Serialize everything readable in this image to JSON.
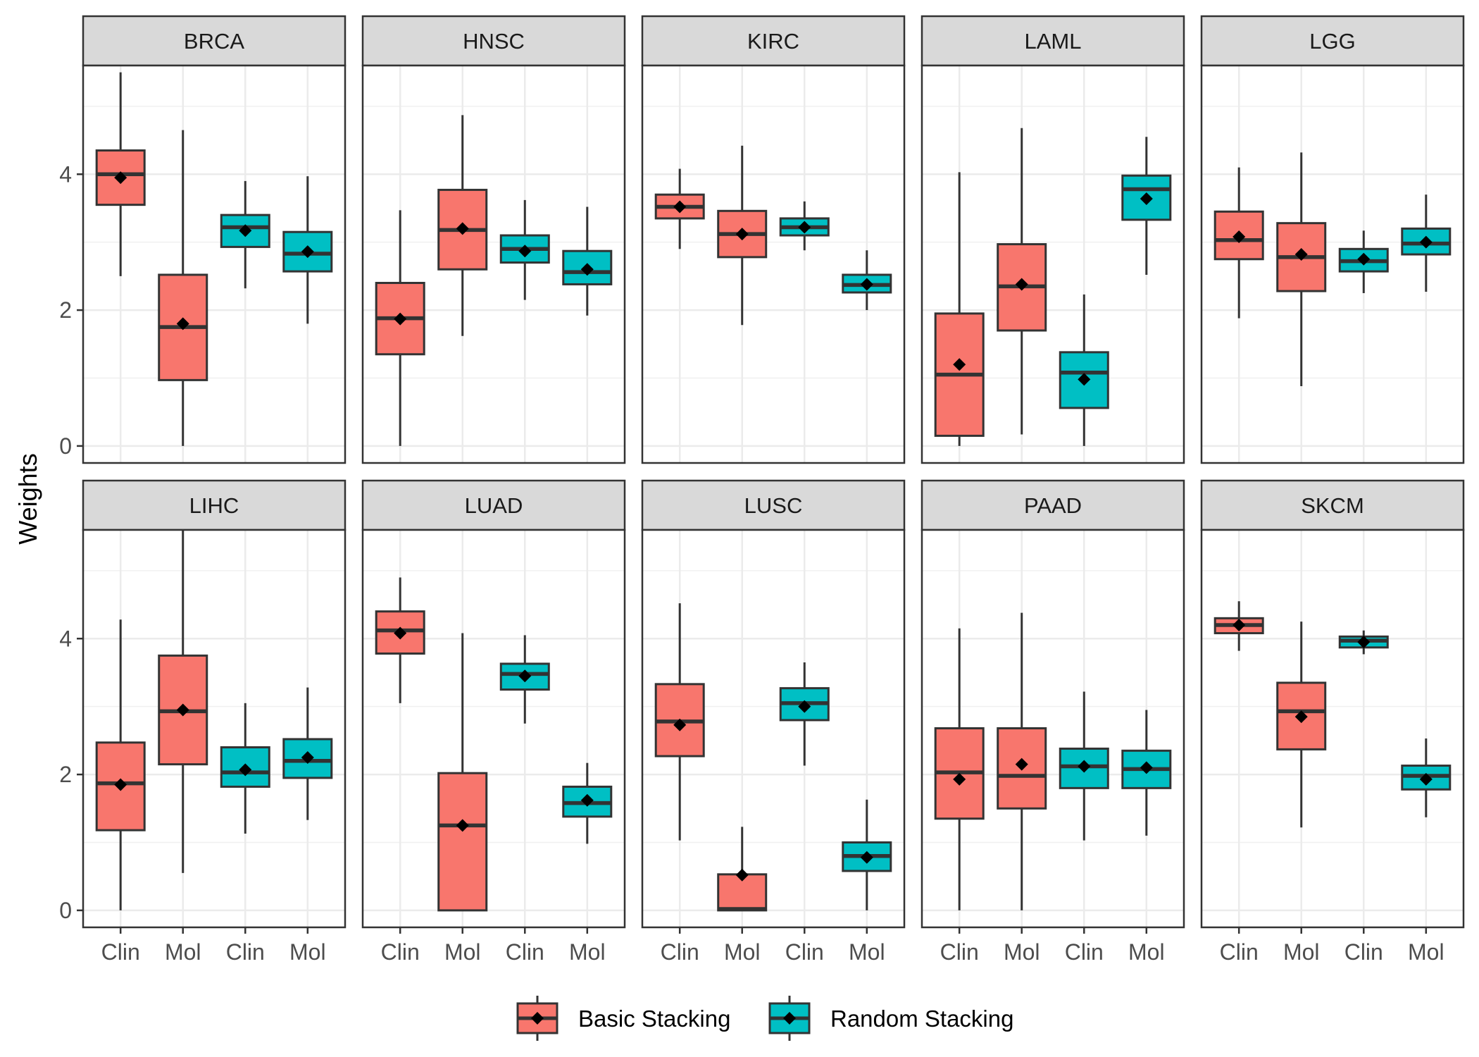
{
  "chart_data": {
    "type": "box",
    "ylabel": "Weights",
    "xlabel": "",
    "ylim": [
      -0.25,
      5.6
    ],
    "yticks": [
      0,
      2,
      4
    ],
    "ytick_labels": [
      "0",
      "2",
      "4"
    ],
    "categories": [
      "Clin",
      "Mol",
      "Clin",
      "Mol"
    ],
    "grid": true,
    "legend_position": "bottom",
    "legend": [
      {
        "name": "Basic Stacking",
        "color": "#F8766D"
      },
      {
        "name": "Random Stacking",
        "color": "#00BFC4"
      }
    ],
    "panels": [
      {
        "name": "BRCA",
        "boxes": [
          {
            "category": "Clin",
            "series": "Basic Stacking",
            "min": 2.5,
            "q1": 3.55,
            "median": 4.0,
            "q3": 4.35,
            "max": 5.5,
            "mean": 3.95
          },
          {
            "category": "Mol",
            "series": "Basic Stacking",
            "min": 0.0,
            "q1": 0.97,
            "median": 1.75,
            "q3": 2.52,
            "max": 4.65,
            "mean": 1.8
          },
          {
            "category": "Clin",
            "series": "Random Stacking",
            "min": 2.32,
            "q1": 2.93,
            "median": 3.22,
            "q3": 3.4,
            "max": 3.9,
            "mean": 3.17
          },
          {
            "category": "Mol",
            "series": "Random Stacking",
            "min": 1.8,
            "q1": 2.57,
            "median": 2.83,
            "q3": 3.15,
            "max": 3.97,
            "mean": 2.86
          }
        ]
      },
      {
        "name": "HNSC",
        "boxes": [
          {
            "category": "Clin",
            "series": "Basic Stacking",
            "min": 0.0,
            "q1": 1.35,
            "median": 1.88,
            "q3": 2.4,
            "max": 3.47,
            "mean": 1.87
          },
          {
            "category": "Mol",
            "series": "Basic Stacking",
            "min": 1.62,
            "q1": 2.6,
            "median": 3.18,
            "q3": 3.77,
            "max": 4.87,
            "mean": 3.2
          },
          {
            "category": "Clin",
            "series": "Random Stacking",
            "min": 2.15,
            "q1": 2.7,
            "median": 2.9,
            "q3": 3.1,
            "max": 3.62,
            "mean": 2.87
          },
          {
            "category": "Mol",
            "series": "Random Stacking",
            "min": 1.92,
            "q1": 2.38,
            "median": 2.56,
            "q3": 2.87,
            "max": 3.52,
            "mean": 2.6
          }
        ]
      },
      {
        "name": "KIRC",
        "boxes": [
          {
            "category": "Clin",
            "series": "Basic Stacking",
            "min": 2.9,
            "q1": 3.35,
            "median": 3.52,
            "q3": 3.7,
            "max": 4.08,
            "mean": 3.52
          },
          {
            "category": "Mol",
            "series": "Basic Stacking",
            "min": 1.78,
            "q1": 2.78,
            "median": 3.12,
            "q3": 3.46,
            "max": 4.42,
            "mean": 3.12
          },
          {
            "category": "Clin",
            "series": "Random Stacking",
            "min": 2.88,
            "q1": 3.1,
            "median": 3.22,
            "q3": 3.35,
            "max": 3.6,
            "mean": 3.22
          },
          {
            "category": "Mol",
            "series": "Random Stacking",
            "min": 2.0,
            "q1": 2.26,
            "median": 2.37,
            "q3": 2.52,
            "max": 2.88,
            "mean": 2.38
          }
        ]
      },
      {
        "name": "LAML",
        "boxes": [
          {
            "category": "Clin",
            "series": "Basic Stacking",
            "min": 0.0,
            "q1": 0.15,
            "median": 1.05,
            "q3": 1.95,
            "max": 4.03,
            "mean": 1.2
          },
          {
            "category": "Mol",
            "series": "Basic Stacking",
            "min": 0.17,
            "q1": 1.7,
            "median": 2.35,
            "q3": 2.97,
            "max": 4.68,
            "mean": 2.38
          },
          {
            "category": "Clin",
            "series": "Random Stacking",
            "min": 0.0,
            "q1": 0.56,
            "median": 1.08,
            "q3": 1.38,
            "max": 2.23,
            "mean": 0.98
          },
          {
            "category": "Mol",
            "series": "Random Stacking",
            "min": 2.52,
            "q1": 3.33,
            "median": 3.78,
            "q3": 3.98,
            "max": 4.55,
            "mean": 3.64
          }
        ]
      },
      {
        "name": "LGG",
        "boxes": [
          {
            "category": "Clin",
            "series": "Basic Stacking",
            "min": 1.88,
            "q1": 2.75,
            "median": 3.03,
            "q3": 3.45,
            "max": 4.1,
            "mean": 3.08
          },
          {
            "category": "Mol",
            "series": "Basic Stacking",
            "min": 0.88,
            "q1": 2.28,
            "median": 2.78,
            "q3": 3.28,
            "max": 4.32,
            "mean": 2.82
          },
          {
            "category": "Clin",
            "series": "Random Stacking",
            "min": 2.25,
            "q1": 2.57,
            "median": 2.72,
            "q3": 2.9,
            "max": 3.17,
            "mean": 2.75
          },
          {
            "category": "Mol",
            "series": "Random Stacking",
            "min": 2.27,
            "q1": 2.82,
            "median": 2.98,
            "q3": 3.2,
            "max": 3.7,
            "mean": 3.0
          }
        ]
      },
      {
        "name": "LIHC",
        "boxes": [
          {
            "category": "Clin",
            "series": "Basic Stacking",
            "min": 0.0,
            "q1": 1.18,
            "median": 1.87,
            "q3": 2.47,
            "max": 4.28,
            "mean": 1.85
          },
          {
            "category": "Mol",
            "series": "Basic Stacking",
            "min": 0.55,
            "q1": 2.15,
            "median": 2.93,
            "q3": 3.75,
            "max": 5.6,
            "mean": 2.95
          },
          {
            "category": "Clin",
            "series": "Random Stacking",
            "min": 1.13,
            "q1": 1.82,
            "median": 2.03,
            "q3": 2.4,
            "max": 3.05,
            "mean": 2.07
          },
          {
            "category": "Mol",
            "series": "Random Stacking",
            "min": 1.33,
            "q1": 1.95,
            "median": 2.2,
            "q3": 2.52,
            "max": 3.28,
            "mean": 2.25
          }
        ]
      },
      {
        "name": "LUAD",
        "boxes": [
          {
            "category": "Clin",
            "series": "Basic Stacking",
            "min": 3.05,
            "q1": 3.78,
            "median": 4.12,
            "q3": 4.4,
            "max": 4.9,
            "mean": 4.08
          },
          {
            "category": "Mol",
            "series": "Basic Stacking",
            "min": 0.0,
            "q1": 0.0,
            "median": 1.25,
            "q3": 2.02,
            "max": 4.08,
            "mean": 1.25
          },
          {
            "category": "Clin",
            "series": "Random Stacking",
            "min": 2.75,
            "q1": 3.25,
            "median": 3.48,
            "q3": 3.63,
            "max": 4.05,
            "mean": 3.45
          },
          {
            "category": "Mol",
            "series": "Random Stacking",
            "min": 0.98,
            "q1": 1.38,
            "median": 1.58,
            "q3": 1.82,
            "max": 2.17,
            "mean": 1.62
          }
        ]
      },
      {
        "name": "LUSC",
        "boxes": [
          {
            "category": "Clin",
            "series": "Basic Stacking",
            "min": 1.03,
            "q1": 2.27,
            "median": 2.78,
            "q3": 3.33,
            "max": 4.52,
            "mean": 2.73
          },
          {
            "category": "Mol",
            "series": "Basic Stacking",
            "min": 0.0,
            "q1": 0.0,
            "median": 0.02,
            "q3": 0.53,
            "max": 1.23,
            "mean": 0.52
          },
          {
            "category": "Clin",
            "series": "Random Stacking",
            "min": 2.13,
            "q1": 2.8,
            "median": 3.05,
            "q3": 3.27,
            "max": 3.65,
            "mean": 3.0
          },
          {
            "category": "Mol",
            "series": "Random Stacking",
            "min": 0.0,
            "q1": 0.58,
            "median": 0.8,
            "q3": 1.0,
            "max": 1.63,
            "mean": 0.78
          }
        ]
      },
      {
        "name": "PAAD",
        "boxes": [
          {
            "category": "Clin",
            "series": "Basic Stacking",
            "min": 0.0,
            "q1": 1.35,
            "median": 2.03,
            "q3": 2.68,
            "max": 4.15,
            "mean": 1.93
          },
          {
            "category": "Mol",
            "series": "Basic Stacking",
            "min": 0.0,
            "q1": 1.5,
            "median": 1.98,
            "q3": 2.68,
            "max": 4.38,
            "mean": 2.15
          },
          {
            "category": "Clin",
            "series": "Random Stacking",
            "min": 1.03,
            "q1": 1.8,
            "median": 2.12,
            "q3": 2.38,
            "max": 3.22,
            "mean": 2.12
          },
          {
            "category": "Mol",
            "series": "Random Stacking",
            "min": 1.1,
            "q1": 1.8,
            "median": 2.08,
            "q3": 2.35,
            "max": 2.95,
            "mean": 2.1
          }
        ]
      },
      {
        "name": "SKCM",
        "boxes": [
          {
            "category": "Clin",
            "series": "Basic Stacking",
            "min": 3.82,
            "q1": 4.08,
            "median": 4.2,
            "q3": 4.3,
            "max": 4.55,
            "mean": 4.2
          },
          {
            "category": "Mol",
            "series": "Basic Stacking",
            "min": 1.22,
            "q1": 2.37,
            "median": 2.93,
            "q3": 3.35,
            "max": 4.25,
            "mean": 2.85
          },
          {
            "category": "Clin",
            "series": "Random Stacking",
            "min": 3.77,
            "q1": 3.87,
            "median": 3.97,
            "q3": 4.03,
            "max": 4.12,
            "mean": 3.95
          },
          {
            "category": "Mol",
            "series": "Random Stacking",
            "min": 1.37,
            "q1": 1.78,
            "median": 1.98,
            "q3": 2.13,
            "max": 2.53,
            "mean": 1.93
          }
        ]
      }
    ]
  }
}
